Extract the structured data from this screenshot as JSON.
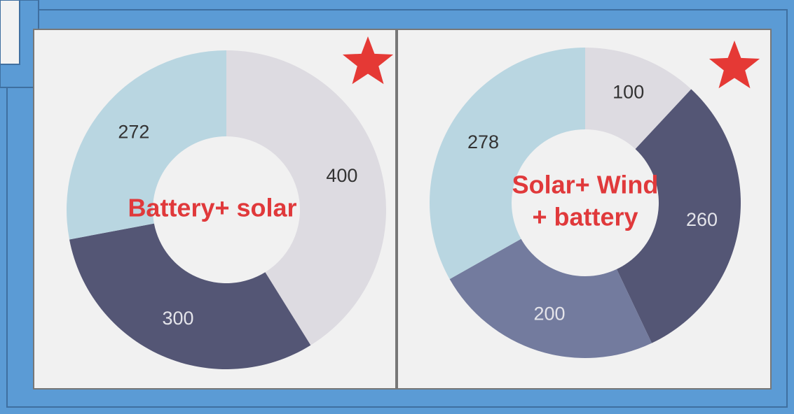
{
  "chart_data": [
    {
      "type": "pie",
      "donut": true,
      "title": [
        "Battery+ solar"
      ],
      "values": [
        400,
        300,
        272
      ],
      "colors": [
        "#dddbe1",
        "#545675",
        "#b9d6e1"
      ]
    },
    {
      "type": "pie",
      "donut": true,
      "title": [
        "Solar+ Wind",
        "+ battery"
      ],
      "values": [
        100,
        260,
        200,
        278
      ],
      "colors": [
        "#dddbe1",
        "#545675",
        "#737b9e",
        "#b9d6e1"
      ]
    }
  ]
}
